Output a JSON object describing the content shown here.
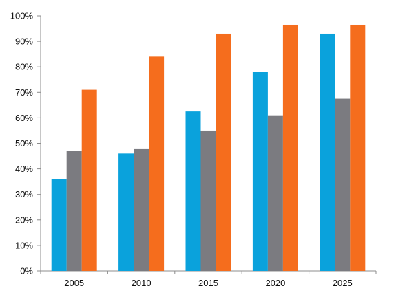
{
  "chart_data": {
    "type": "bar",
    "title": "",
    "xlabel": "",
    "ylabel": "",
    "categories": [
      "2005",
      "2010",
      "2015",
      "2020",
      "2025"
    ],
    "y_ticks": [
      "0%",
      "10%",
      "20%",
      "30%",
      "40%",
      "50%",
      "60%",
      "70%",
      "80%",
      "90%",
      "100%"
    ],
    "ylim": [
      0,
      100
    ],
    "grid": false,
    "legend": "none",
    "series": [
      {
        "color": "#0aa2dc",
        "values": [
          36,
          46,
          62.5,
          78,
          93
        ]
      },
      {
        "color": "#7b7b80",
        "values": [
          47,
          48,
          55,
          61,
          67.5
        ]
      },
      {
        "color": "#f56d1d",
        "values": [
          71,
          84,
          93,
          96.5,
          96.5
        ]
      }
    ]
  }
}
